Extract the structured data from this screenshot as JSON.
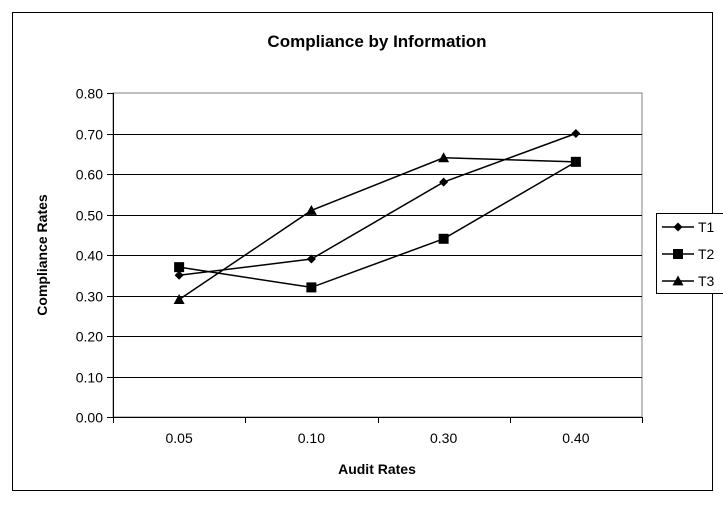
{
  "chart_data": {
    "type": "line",
    "title": "Compliance by Information",
    "xlabel": "Audit Rates",
    "ylabel": "Compliance Rates",
    "categories": [
      "0.05",
      "0.10",
      "0.30",
      "0.40"
    ],
    "ylim": [
      0,
      0.8
    ],
    "yticks": [
      "0.00",
      "0.10",
      "0.20",
      "0.30",
      "0.40",
      "0.50",
      "0.60",
      "0.70",
      "0.80"
    ],
    "grid": true,
    "legend_position": "right",
    "series": [
      {
        "name": "T1",
        "marker": "diamond",
        "values": [
          0.35,
          0.39,
          0.58,
          0.7
        ]
      },
      {
        "name": "T2",
        "marker": "square",
        "values": [
          0.37,
          0.32,
          0.44,
          0.63
        ]
      },
      {
        "name": "T3",
        "marker": "triangle",
        "values": [
          0.29,
          0.51,
          0.64,
          0.63
        ]
      }
    ]
  }
}
